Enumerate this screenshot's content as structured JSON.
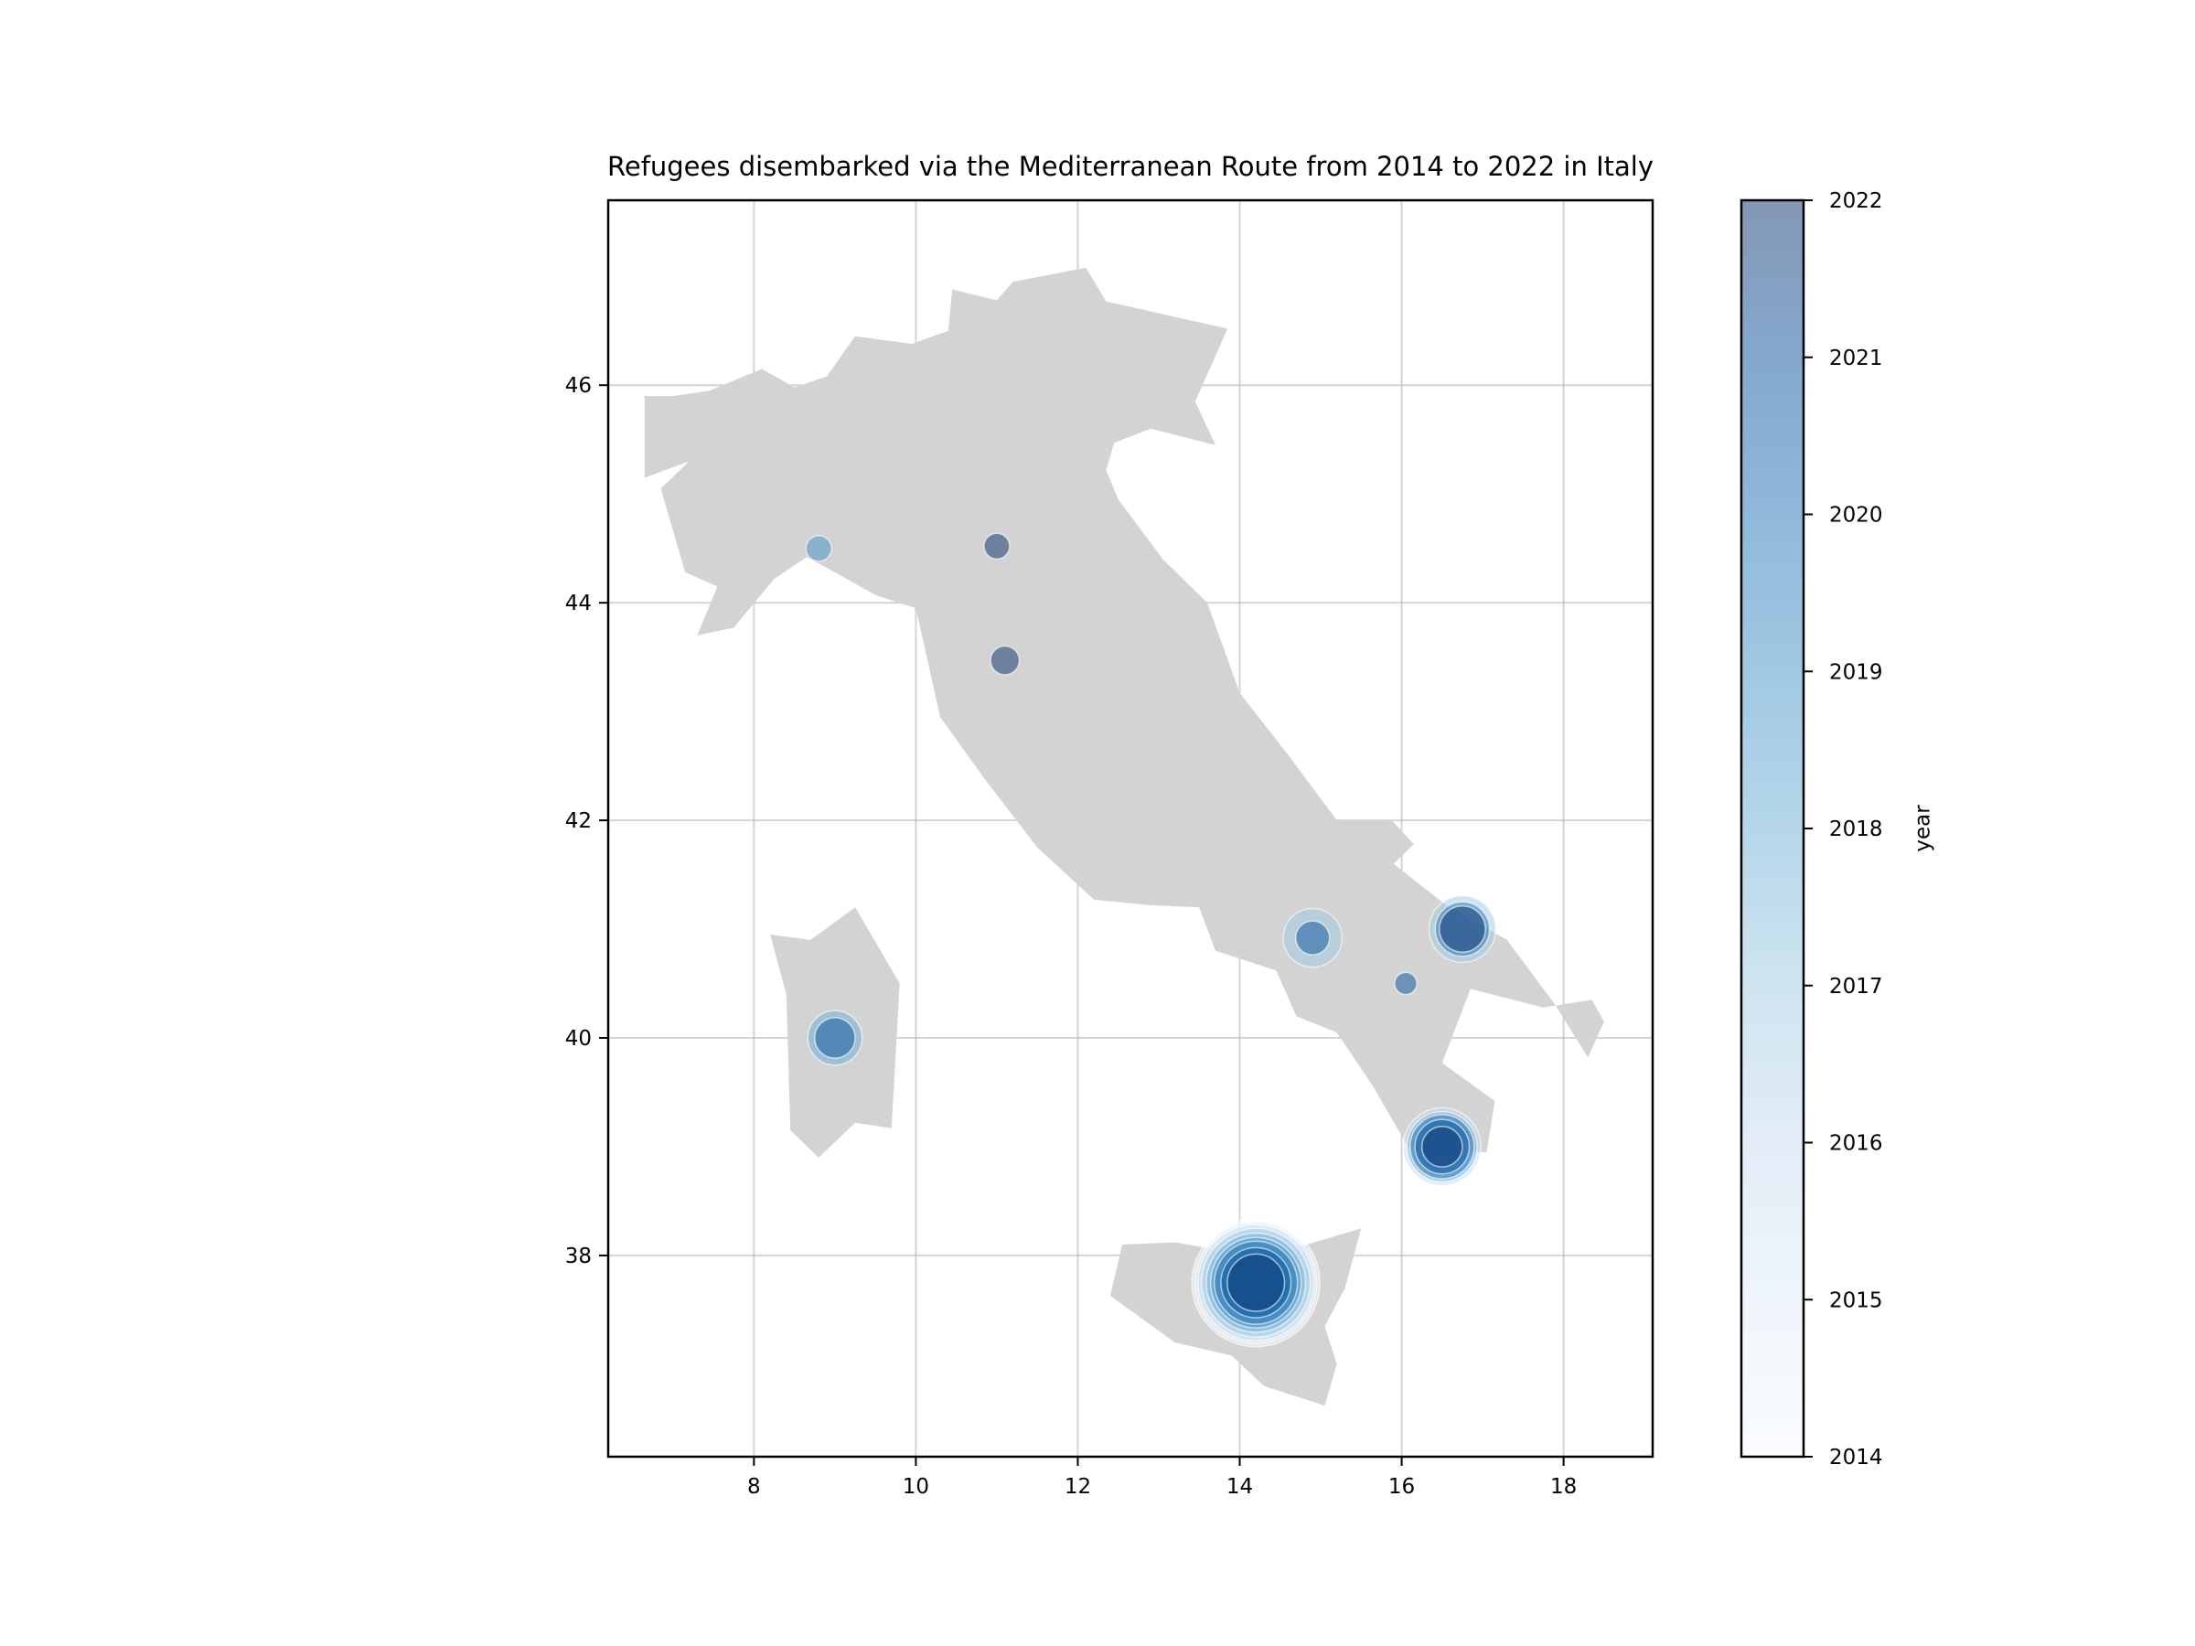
{
  "chart_data": {
    "type": "scatter",
    "title": "Refugees disembarked via the Mediterranean Route from 2014 to 2022 in Italy",
    "xlabel": "",
    "ylabel": "",
    "xlim": [
      6.2,
      19.1
    ],
    "ylim": [
      36.15,
      47.7
    ],
    "x_ticks": [
      8,
      10,
      12,
      14,
      16,
      18
    ],
    "y_ticks": [
      38,
      40,
      42,
      44,
      46
    ],
    "grid": true,
    "background_shape": "Italy",
    "marker_encoding": {
      "color": "year",
      "size": "refugees disembarked"
    },
    "colorbar": {
      "label": "year",
      "range": [
        2014,
        2022
      ],
      "ticks": [
        2014,
        2015,
        2016,
        2017,
        2018,
        2019,
        2020,
        2021,
        2022
      ],
      "colormap": [
        "#f7fbff",
        "#deebf7",
        "#c6dbef",
        "#9ecae1",
        "#6baed6",
        "#4292c6",
        "#2171b5",
        "#08519c",
        "#08306b"
      ],
      "alpha": 0.5
    },
    "map_color": "#d3d3d3",
    "points": [
      {
        "lon": 14.2,
        "lat": 37.75,
        "year": 2014,
        "relative_size": 1.0
      },
      {
        "lon": 14.2,
        "lat": 37.75,
        "year": 2015,
        "relative_size": 0.9
      },
      {
        "lon": 14.2,
        "lat": 37.75,
        "year": 2016,
        "relative_size": 0.82
      },
      {
        "lon": 14.2,
        "lat": 37.75,
        "year": 2017,
        "relative_size": 0.72
      },
      {
        "lon": 14.2,
        "lat": 37.75,
        "year": 2018,
        "relative_size": 0.6
      },
      {
        "lon": 14.2,
        "lat": 37.75,
        "year": 2019,
        "relative_size": 0.5
      },
      {
        "lon": 14.2,
        "lat": 37.75,
        "year": 2020,
        "relative_size": 0.42
      },
      {
        "lon": 14.2,
        "lat": 37.75,
        "year": 2021,
        "relative_size": 0.3
      },
      {
        "lon": 14.2,
        "lat": 37.75,
        "year": 2022,
        "relative_size": 0.2
      },
      {
        "lon": 16.5,
        "lat": 39.0,
        "year": 2016,
        "relative_size": 0.37
      },
      {
        "lon": 16.5,
        "lat": 39.0,
        "year": 2018,
        "relative_size": 0.3
      },
      {
        "lon": 16.5,
        "lat": 39.0,
        "year": 2020,
        "relative_size": 0.25
      },
      {
        "lon": 16.5,
        "lat": 39.0,
        "year": 2021,
        "relative_size": 0.18
      },
      {
        "lon": 16.5,
        "lat": 39.0,
        "year": 2022,
        "relative_size": 0.1
      },
      {
        "lon": 16.75,
        "lat": 41.0,
        "year": 2017,
        "relative_size": 0.27
      },
      {
        "lon": 16.75,
        "lat": 41.0,
        "year": 2020,
        "relative_size": 0.18
      },
      {
        "lon": 16.75,
        "lat": 41.0,
        "year": 2022,
        "relative_size": 0.13
      },
      {
        "lon": 14.9,
        "lat": 40.92,
        "year": 2017,
        "relative_size": 0.21
      },
      {
        "lon": 14.9,
        "lat": 40.92,
        "year": 2021,
        "relative_size": 0.07
      },
      {
        "lon": 9.0,
        "lat": 40.0,
        "year": 2018,
        "relative_size": 0.18
      },
      {
        "lon": 9.0,
        "lat": 40.0,
        "year": 2021,
        "relative_size": 0.1
      },
      {
        "lon": 8.8,
        "lat": 44.5,
        "year": 2019,
        "relative_size": 0.04
      },
      {
        "lon": 11.0,
        "lat": 44.52,
        "year": 2022,
        "relative_size": 0.04
      },
      {
        "lon": 11.1,
        "lat": 43.47,
        "year": 2022,
        "relative_size": 0.05
      },
      {
        "lon": 16.05,
        "lat": 40.5,
        "year": 2021,
        "relative_size": 0.03
      }
    ]
  }
}
